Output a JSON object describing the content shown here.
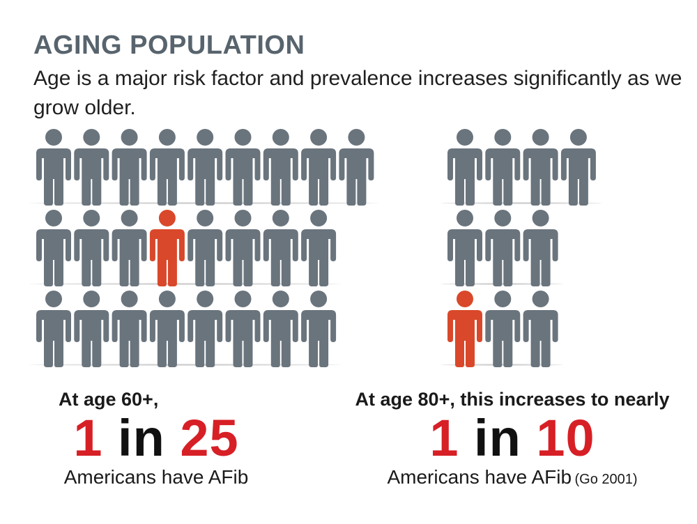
{
  "header": {
    "title": "AGING POPULATION",
    "subtitle": "Age is a major risk factor and prevalence increases significantly as we grow older."
  },
  "colors": {
    "person_gray": "#6a747d",
    "person_highlight": "#d9482a",
    "ratio_red": "#d71f26",
    "title_gray": "#58646d"
  },
  "icon": "person-icon",
  "groups": [
    {
      "age_label": "At age 60+,",
      "ratio_left": "1",
      "ratio_in": "in",
      "ratio_right": "25",
      "tail": "Americans have AFib",
      "people_total": 25,
      "people_highlighted": 1,
      "rows": [
        9,
        8,
        8
      ]
    },
    {
      "age_label": "At age 80+, this increases to nearly",
      "ratio_left": "1",
      "ratio_in": "in",
      "ratio_right": "10",
      "tail": "Americans have AFib",
      "citation": "(Go 2001)",
      "people_total": 10,
      "people_highlighted": 1,
      "rows": [
        4,
        3,
        3
      ]
    }
  ]
}
